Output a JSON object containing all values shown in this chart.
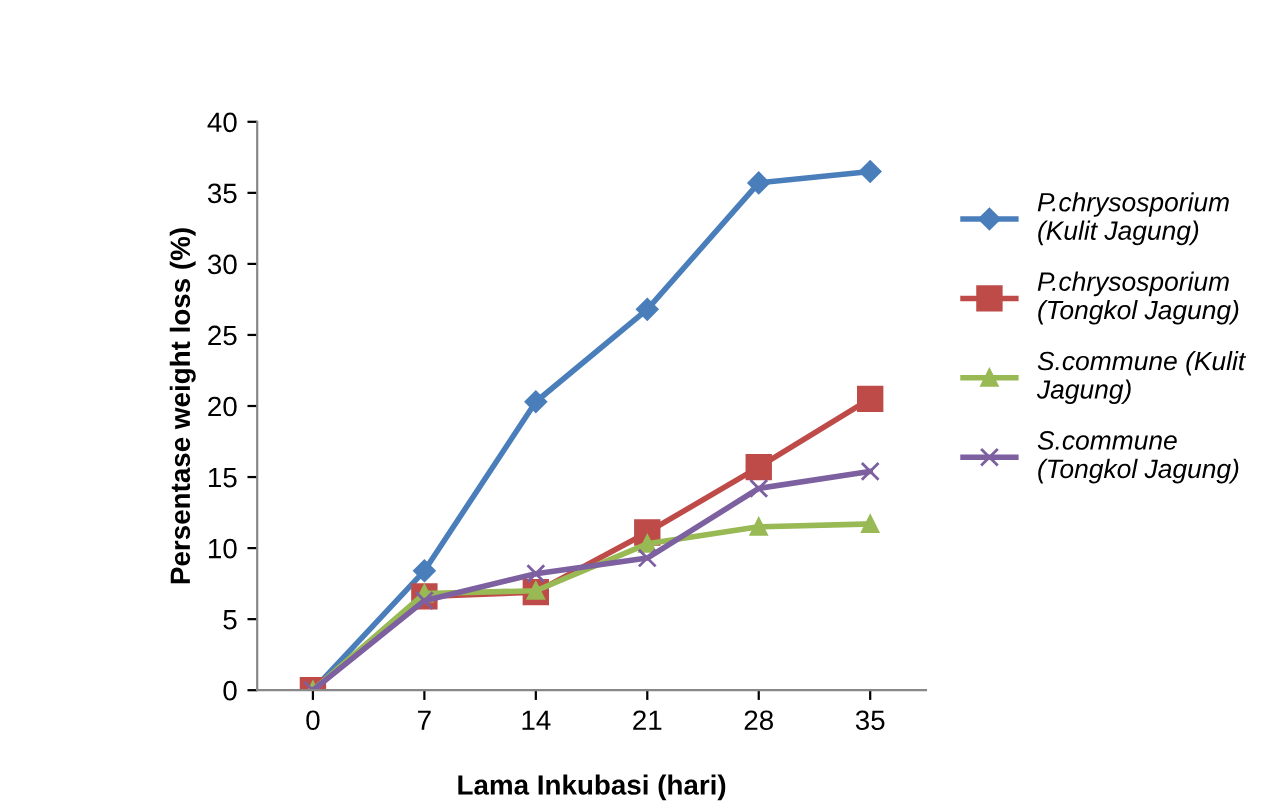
{
  "chart_data": {
    "type": "line",
    "xlabel": "Lama Inkubasi (hari)",
    "ylabel": "Persentase weight loss (%)",
    "categories": [
      "0",
      "7",
      "14",
      "21",
      "28",
      "35"
    ],
    "ylim": [
      0,
      40
    ],
    "yticks": [
      0,
      5,
      10,
      15,
      20,
      25,
      30,
      35,
      40
    ],
    "grid": false,
    "legend": "right",
    "line_style": "solid",
    "series": [
      {
        "name": "P.chrysosporium\n(Kulit Jagung)",
        "color": "#4a7ebb",
        "marker": "diamond",
        "values": [
          0,
          8.4,
          20.3,
          26.8,
          35.7,
          36.5
        ]
      },
      {
        "name": "P.chrysosporium\n(Tongkol Jagung)",
        "color": "#be4b48",
        "marker": "square",
        "values": [
          0,
          6.6,
          6.9,
          11.1,
          15.7,
          20.5
        ]
      },
      {
        "name": "S.commune (Kulit\nJagung)",
        "color": "#98b954",
        "marker": "triangle",
        "values": [
          0,
          6.8,
          7.0,
          10.3,
          11.5,
          11.7
        ]
      },
      {
        "name": "S.commune\n(Tongkol Jagung)",
        "color": "#7d60a0",
        "marker": "cross",
        "values": [
          0,
          6.3,
          8.2,
          9.3,
          14.2,
          15.4
        ]
      }
    ]
  }
}
